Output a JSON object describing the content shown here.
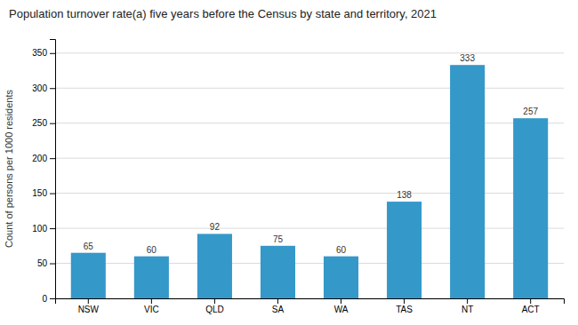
{
  "chart_data": {
    "type": "bar",
    "title": "Population turnover rate(a) five years before the Census by state and territory, 2021",
    "categories": [
      "NSW",
      "VIC",
      "QLD",
      "SA",
      "WA",
      "TAS",
      "NT",
      "ACT"
    ],
    "values": [
      65,
      60,
      92,
      75,
      60,
      138,
      333,
      257
    ],
    "color": "#3498c9",
    "ylabel": "Count of persons per 1000 residents",
    "ylim": [
      0,
      370
    ],
    "yticks": [
      0,
      50,
      100,
      150,
      200,
      250,
      300,
      350
    ],
    "grid": true,
    "data_labels": true
  }
}
